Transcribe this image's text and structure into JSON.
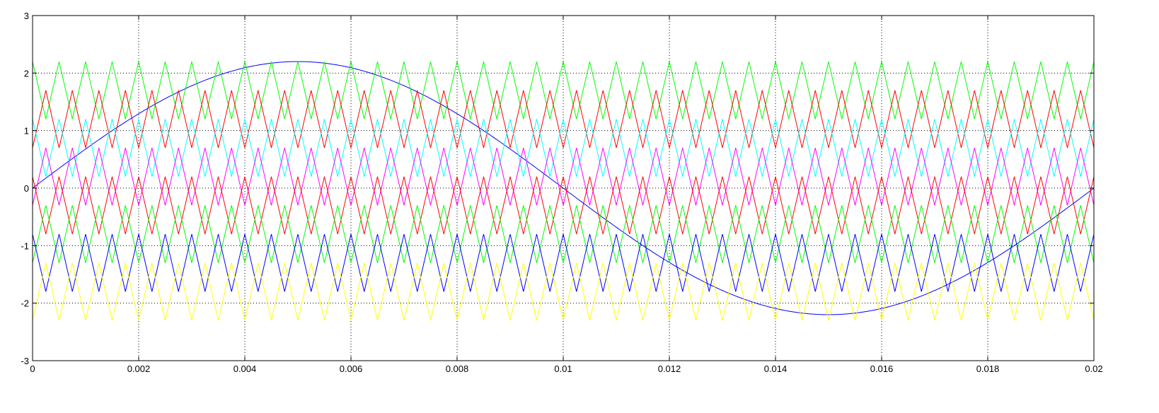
{
  "chart_data": {
    "type": "line",
    "title": "",
    "xlabel": "",
    "ylabel": "",
    "xlim": [
      0,
      0.02
    ],
    "ylim": [
      -3,
      3
    ],
    "grid": true,
    "legend": "none",
    "xticks": [
      0,
      0.002,
      0.004,
      0.006,
      0.008,
      0.01,
      0.012,
      0.014,
      0.016,
      0.018,
      0.02
    ],
    "xtick_labels": [
      "0",
      "0.002",
      "0.004",
      "0.006",
      "0.008",
      "0.01",
      "0.012",
      "0.014",
      "0.016",
      "0.018",
      "0.02"
    ],
    "yticks": [
      -3,
      -2,
      -1,
      0,
      1,
      2,
      3
    ],
    "ytick_labels": [
      "-3",
      "-2",
      "-1",
      "0",
      "1",
      "2",
      "3"
    ],
    "carrier_frequency_hz": 2000,
    "series": [
      {
        "kind": "sine",
        "amplitude": 2.2,
        "frequency_hz": 50,
        "phase_deg": 0,
        "color": "#0000ff"
      },
      {
        "kind": "triangle",
        "min": 1.2,
        "max": 2.2,
        "frequency_hz": 2000,
        "starts_at": "max",
        "color": "#00ff00"
      },
      {
        "kind": "triangle",
        "min": 0.7,
        "max": 1.7,
        "frequency_hz": 2000,
        "starts_at": "min",
        "color": "#ff0000"
      },
      {
        "kind": "triangle",
        "min": 0.2,
        "max": 1.2,
        "frequency_hz": 2000,
        "starts_at": "max",
        "color": "#00ffff"
      },
      {
        "kind": "triangle",
        "min": -0.3,
        "max": 0.7,
        "frequency_hz": 2000,
        "starts_at": "min",
        "color": "#ff00ff"
      },
      {
        "kind": "triangle",
        "min": -0.8,
        "max": 0.2,
        "frequency_hz": 2000,
        "starts_at": "max",
        "color": "#ff0000"
      },
      {
        "kind": "triangle",
        "min": -1.3,
        "max": -0.3,
        "frequency_hz": 2000,
        "starts_at": "min",
        "color": "#00ff00"
      },
      {
        "kind": "triangle",
        "min": -1.8,
        "max": -0.8,
        "frequency_hz": 2000,
        "starts_at": "max",
        "color": "#0000ff"
      },
      {
        "kind": "triangle",
        "min": -2.3,
        "max": -1.3,
        "frequency_hz": 2000,
        "starts_at": "min",
        "color": "#ffff00"
      }
    ]
  }
}
